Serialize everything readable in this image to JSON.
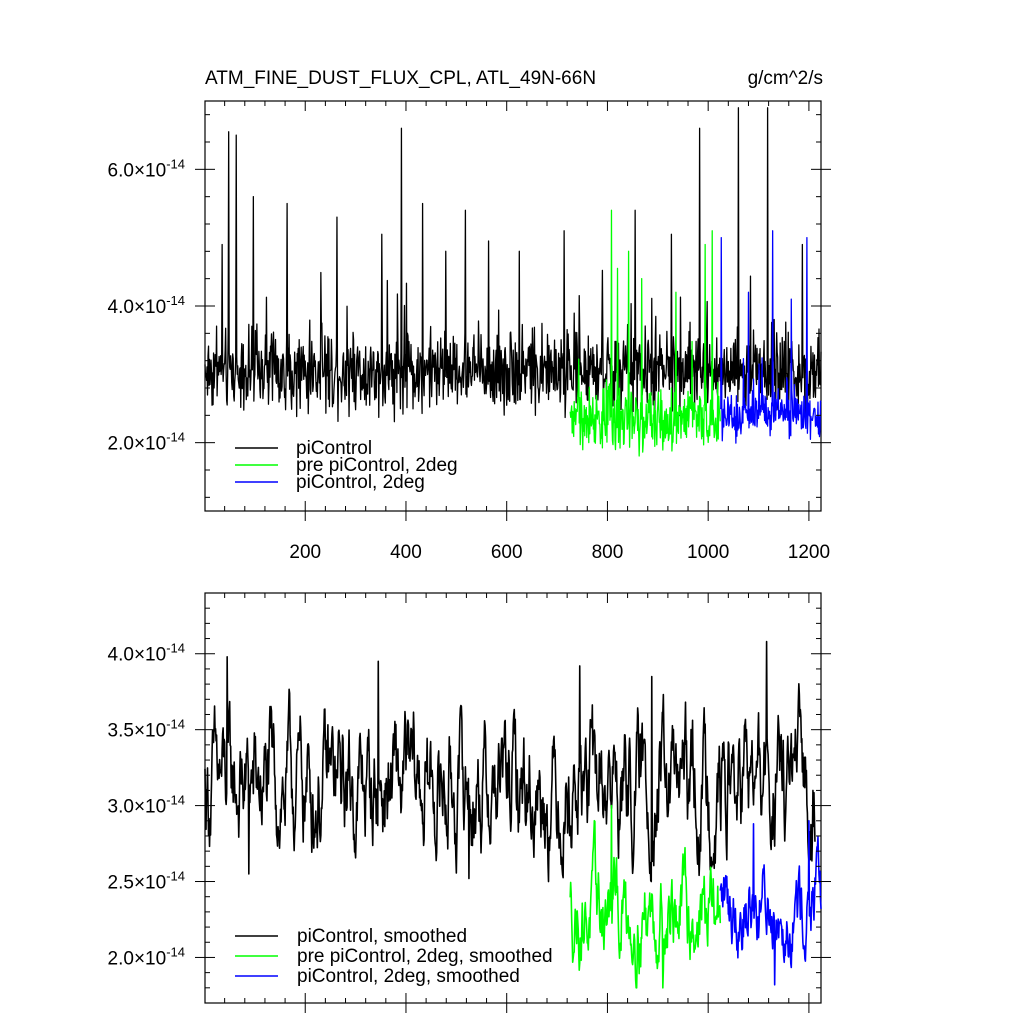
{
  "colors": {
    "black": "#000000",
    "green": "#00ff00",
    "blue": "#0000ff"
  },
  "chart_data": [
    {
      "type": "line",
      "title": "ATM_FINE_DUST_FLUX_CPL, ATL_49N-66N",
      "units": "g/cm^2/s",
      "xlim": [
        1,
        1224
      ],
      "ylim": [
        1e-14,
        7e-14
      ],
      "x_ticks": [
        200,
        400,
        600,
        800,
        1000,
        1200
      ],
      "y_ticks": [
        {
          "mantissa": "2.0",
          "times": "×10",
          "exp": "-14",
          "value": 2e-14
        },
        {
          "mantissa": "4.0",
          "times": "×10",
          "exp": "-14",
          "value": 4e-14
        },
        {
          "mantissa": "6.0",
          "times": "×10",
          "exp": "-14",
          "value": 6e-14
        }
      ],
      "legend": [
        "piControl",
        "pre piControl, 2deg",
        "piControl, 2deg"
      ],
      "legend_position": "bottom-left",
      "series": [
        {
          "name": "piControl",
          "color": "#000000",
          "x_start": 1,
          "x_end": 1224,
          "mean": 3.05e-14,
          "min": 1.7e-14,
          "max": 6.9e-14,
          "spikes": [
            [
              35,
              4.9e-14
            ],
            [
              48,
              6.55e-14
            ],
            [
              63,
              6.5e-14
            ],
            [
              97,
              5.6e-14
            ],
            [
              164,
              5.5e-14
            ],
            [
              263,
              5.3e-14
            ],
            [
              352,
              5.05e-14
            ],
            [
              391,
              6.6e-14
            ],
            [
              433,
              5.5e-14
            ],
            [
              479,
              4.8e-14
            ],
            [
              518,
              5.4e-14
            ],
            [
              564,
              4.95e-14
            ],
            [
              625,
              4.8e-14
            ],
            [
              714,
              5.1e-14
            ],
            [
              855,
              5.4e-14
            ],
            [
              927,
              5.05e-14
            ],
            [
              983,
              6.6e-14
            ],
            [
              1060,
              6.9e-14
            ],
            [
              1118,
              6.95e-14
            ],
            [
              1187,
              4.9e-14
            ]
          ]
        },
        {
          "name": "pre piControl, 2deg",
          "color": "#00ff00",
          "x_start": 726,
          "x_end": 1024,
          "mean": 2.35e-14,
          "min": 1e-14,
          "max": 5.4e-14,
          "spikes": [
            [
              808,
              5.4e-14
            ],
            [
              820,
              4.55e-14
            ],
            [
              842,
              4.8e-14
            ],
            [
              868,
              4.4e-14
            ],
            [
              936,
              4.2e-14
            ],
            [
              994,
              4.9e-14
            ],
            [
              1008,
              5.1e-14
            ]
          ]
        },
        {
          "name": "piControl, 2deg",
          "color": "#0000ff",
          "x_start": 1024,
          "x_end": 1224,
          "mean": 2.4e-14,
          "min": 1.4e-14,
          "max": 5.1e-14,
          "spikes": [
            [
              1026,
              5e-14
            ],
            [
              1080,
              4.2e-14
            ],
            [
              1128,
              5.1e-14
            ],
            [
              1165,
              4.1e-14
            ],
            [
              1196,
              5e-14
            ]
          ]
        }
      ]
    },
    {
      "type": "line",
      "title": "",
      "xlim": [
        1,
        1224
      ],
      "ylim": [
        1.7e-14,
        4.4e-14
      ],
      "y_ticks": [
        {
          "mantissa": "2.0",
          "times": "×10",
          "exp": "-14",
          "value": 2e-14
        },
        {
          "mantissa": "2.5",
          "times": "×10",
          "exp": "-14",
          "value": 2.5e-14
        },
        {
          "mantissa": "3.0",
          "times": "×10",
          "exp": "-14",
          "value": 3e-14
        },
        {
          "mantissa": "3.5",
          "times": "×10",
          "exp": "-14",
          "value": 3.5e-14
        },
        {
          "mantissa": "4.0",
          "times": "×10",
          "exp": "-14",
          "value": 4e-14
        }
      ],
      "legend": [
        "piControl, smoothed",
        "pre piControl, 2deg, smoothed",
        "piControl, 2deg, smoothed"
      ],
      "legend_position": "bottom-left",
      "series": [
        {
          "name": "piControl, smoothed",
          "color": "#000000",
          "x_start": 1,
          "x_end": 1212,
          "mean": 3.12e-14,
          "min": 2.5e-14,
          "max": 4.1e-14,
          "spikes": [
            [
              45,
              3.98e-14
            ],
            [
              88,
              2.55e-14
            ],
            [
              345,
              3.95e-14
            ],
            [
              525,
              2.52e-14
            ],
            [
              745,
              3.92e-14
            ],
            [
              888,
              3.85e-14
            ],
            [
              1116,
              4.08e-14
            ]
          ]
        },
        {
          "name": "pre piControl, 2deg, smoothed",
          "color": "#00ff00",
          "x_start": 726,
          "x_end": 1024,
          "mean": 2.3e-14,
          "min": 1.8e-14,
          "max": 3e-14,
          "spikes": [
            [
              808,
              3e-14
            ],
            [
              910,
              1.8e-14
            ]
          ]
        },
        {
          "name": "piControl, 2deg, smoothed",
          "color": "#0000ff",
          "x_start": 1024,
          "x_end": 1224,
          "mean": 2.35e-14,
          "min": 1.82e-14,
          "max": 2.9e-14,
          "spikes": [
            [
              1090,
              2.88e-14
            ],
            [
              1132,
              1.82e-14
            ],
            [
              1200,
              2.9e-14
            ]
          ]
        }
      ]
    }
  ]
}
